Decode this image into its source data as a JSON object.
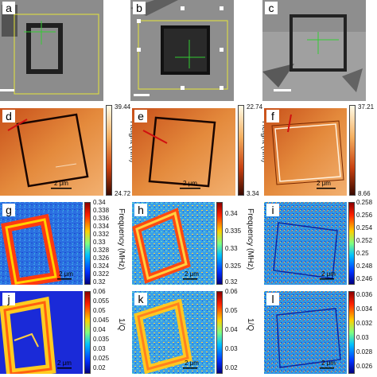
{
  "colors": {
    "afm_low": "#3a0a00",
    "afm_mid": "#d9601a",
    "afm_high": "#fff6e6",
    "freq_low": "#1230c8",
    "freq_high": "#b40000",
    "marker_red": "#d01010",
    "marker_green": "#33cc33",
    "guide_yellow": "#e6e63a"
  },
  "panels": {
    "a": {
      "label": "a"
    },
    "b": {
      "label": "b"
    },
    "c": {
      "label": "c"
    },
    "d": {
      "label": "d",
      "scale": "2 μm"
    },
    "e": {
      "label": "e",
      "scale": "2 μm"
    },
    "f": {
      "label": "f",
      "scale": "2 μm"
    },
    "g": {
      "label": "g",
      "scale": "2 μm"
    },
    "h": {
      "label": "h",
      "scale": "2 μm"
    },
    "i": {
      "label": "i",
      "scale": "2 μm"
    },
    "j": {
      "label": "j",
      "scale": "2 μm"
    },
    "k": {
      "label": "k",
      "scale": "2 μm"
    },
    "l": {
      "label": "l",
      "scale": "2 μm"
    }
  },
  "colorbars": {
    "d": {
      "max": "39.44",
      "min": "24.72",
      "quantity": "Height (nm)"
    },
    "e": {
      "max": "22.74",
      "min": "3.34",
      "quantity": "Height (nm)"
    },
    "f": {
      "max": "37.21",
      "min": "8.66"
    },
    "g": {
      "ticks": [
        "0.34",
        "0.338",
        "0.336",
        "0.334",
        "0.332",
        "0.33",
        "0.328",
        "0.326",
        "0.324",
        "0.322",
        "0.32"
      ],
      "quantity": "Frequency (MHz)"
    },
    "h": {
      "ticks": [
        "0.34",
        "0.335",
        "0.33",
        "0.325",
        "0.32"
      ],
      "quantity": "Frequency (MHz)"
    },
    "i": {
      "ticks": [
        "0.258",
        "0.256",
        "0.254",
        "0.252",
        "0.25",
        "0.248",
        "0.246"
      ]
    },
    "j": {
      "ticks": [
        "0.06",
        "0.055",
        "0.05",
        "0.045",
        "0.04",
        "0.035",
        "0.03",
        "0.025",
        "0.02"
      ],
      "quantity": "1/Q"
    },
    "k": {
      "ticks": [
        "0.06",
        "0.05",
        "0.04",
        "0.03",
        "0.02"
      ],
      "quantity": "1/Q"
    },
    "l": {
      "ticks": [
        "0.036",
        "0.034",
        "0.032",
        "0.03",
        "0.028",
        "0.026"
      ]
    }
  }
}
